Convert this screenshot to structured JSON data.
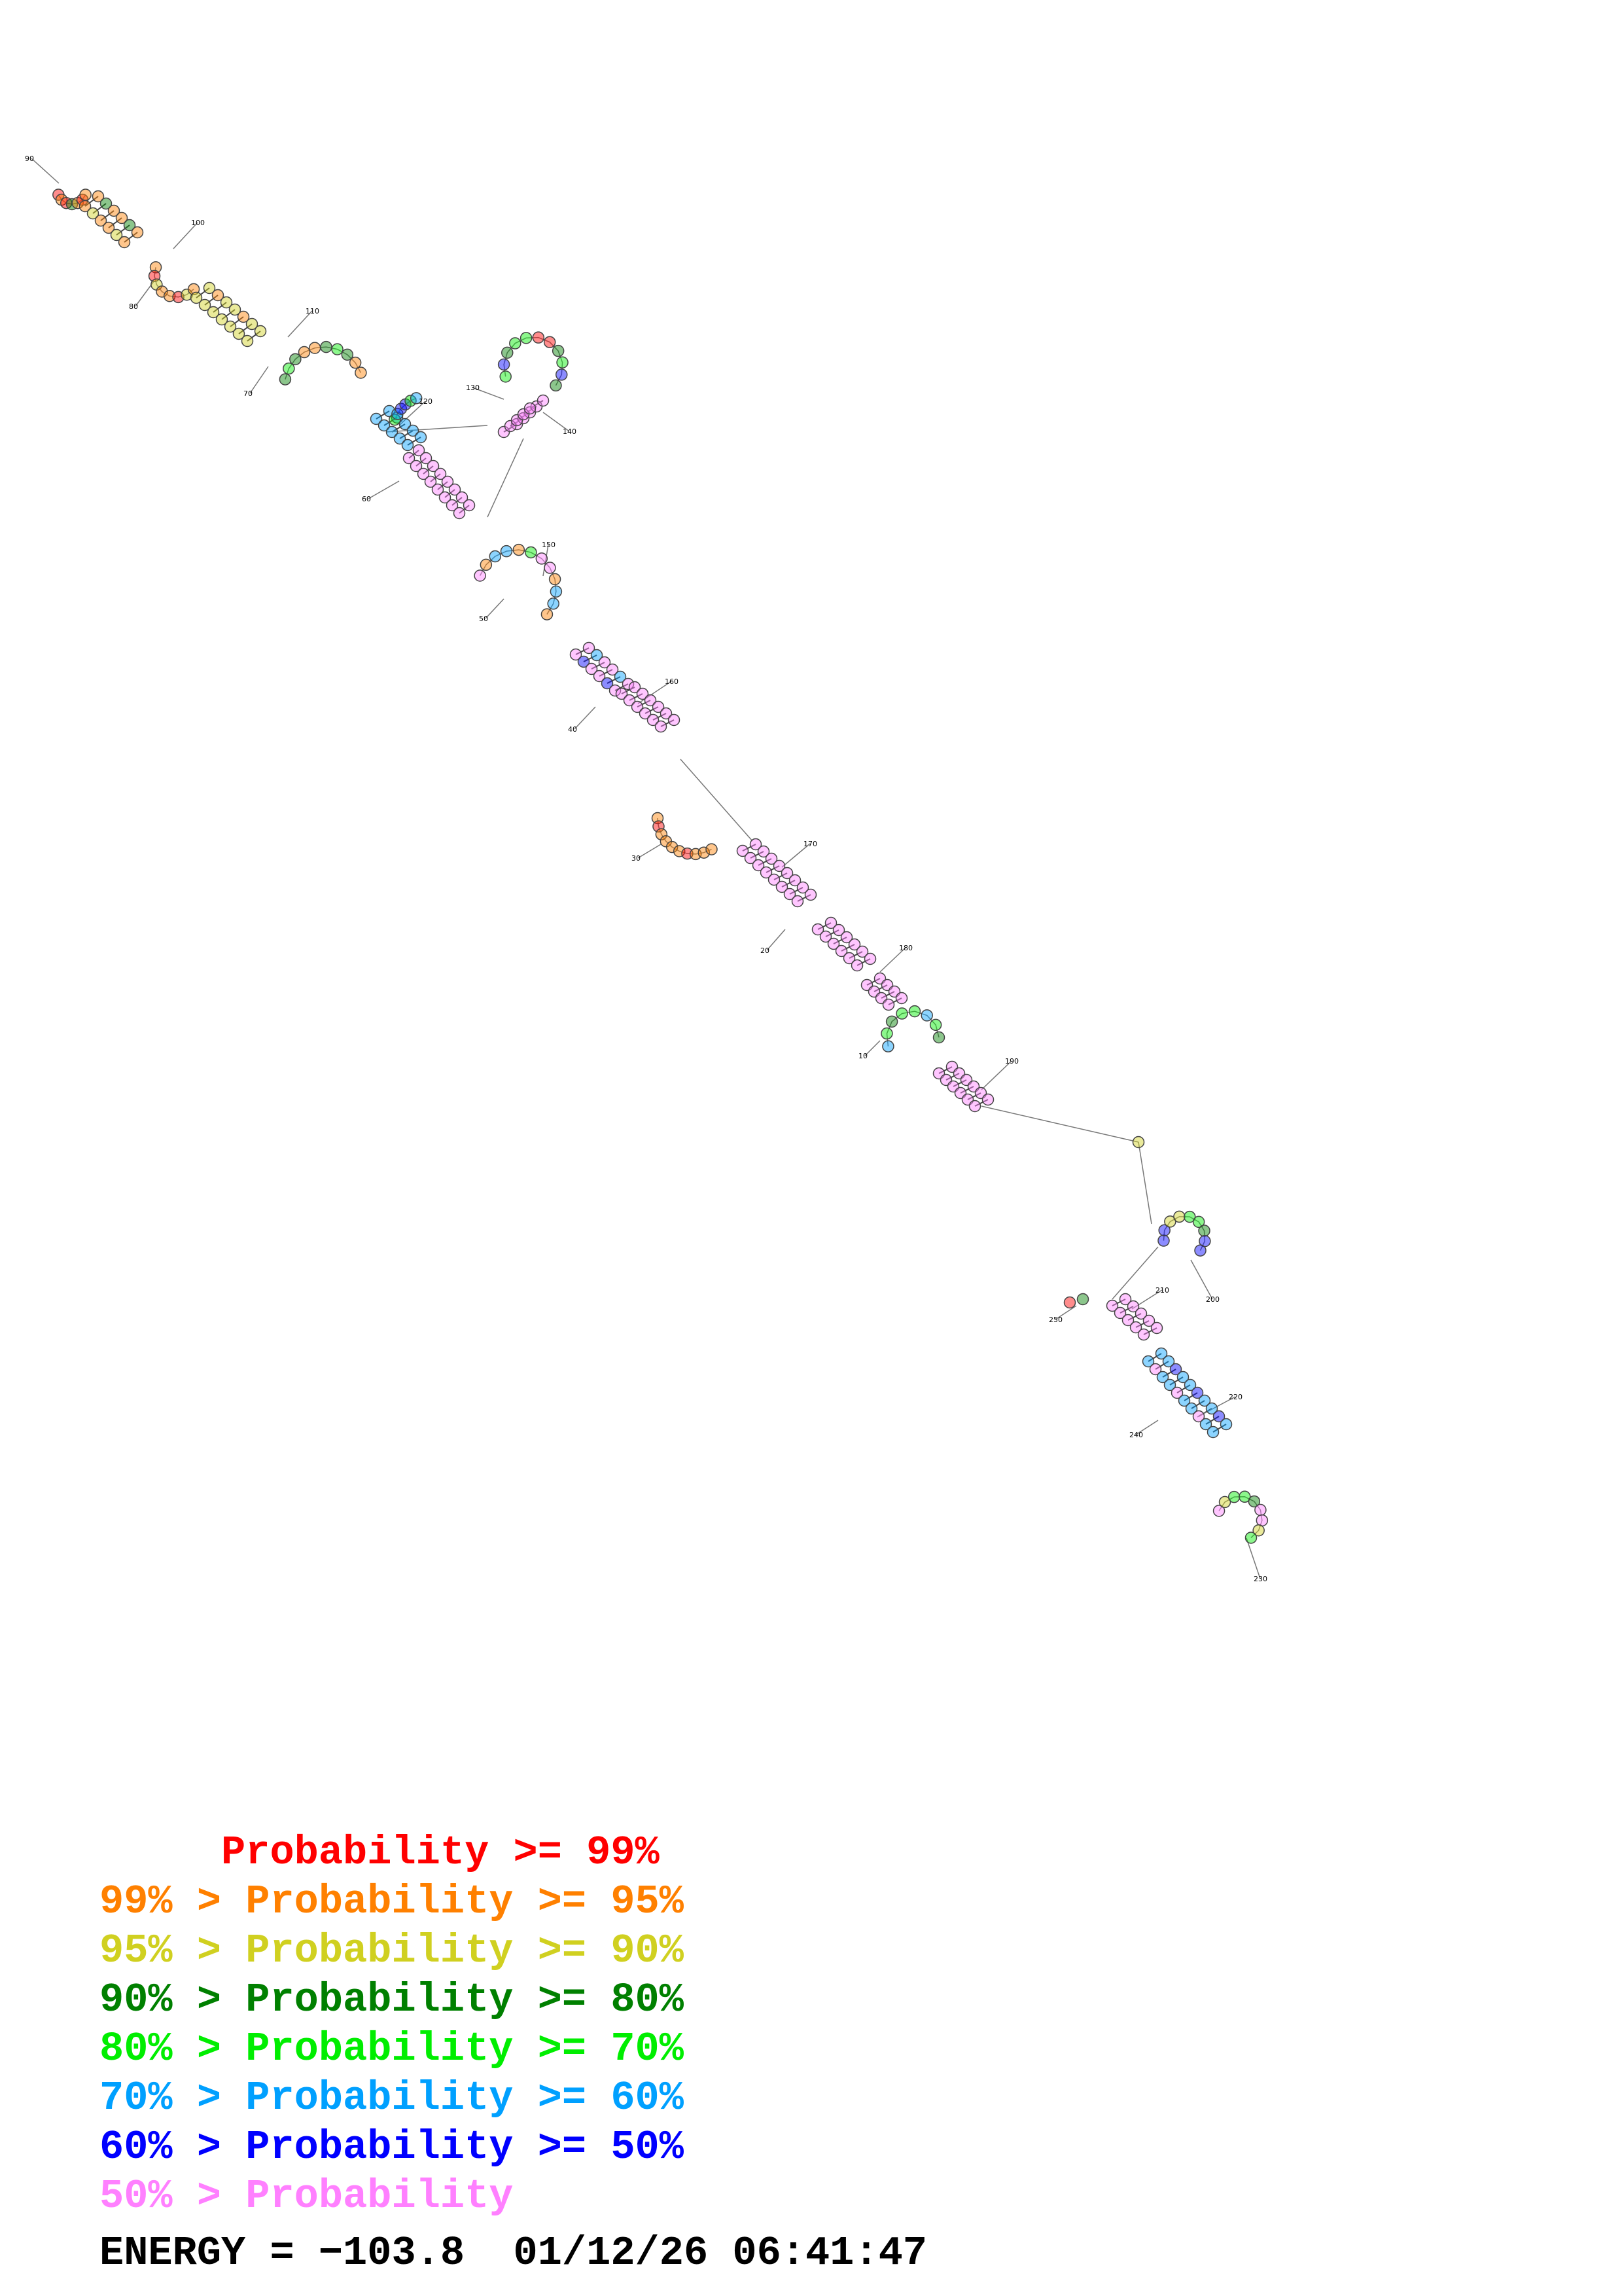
{
  "diagram": {
    "position_labels": [
      "10",
      "20",
      "30",
      "40",
      "50",
      "60",
      "70",
      "80",
      "90",
      "100",
      "110",
      "120",
      "130",
      "140",
      "150",
      "160",
      "170",
      "180",
      "190",
      "200",
      "210",
      "220",
      "230",
      "240",
      "250"
    ],
    "color_scale": {
      "ge99": "#ff0000",
      "ge95": "#ff8000",
      "ge90": "#d0d020",
      "ge80": "#008000",
      "ge70": "#00ee00",
      "ge60": "#00a0ff",
      "ge50": "#0000ff",
      "lt50": "#ff80ff"
    }
  },
  "legend": {
    "rows": [
      {
        "text": "     Probability >= 99%",
        "color": "#ff0000"
      },
      {
        "text": "99% > Probability >= 95%",
        "color": "#ff8000"
      },
      {
        "text": "95% > Probability >= 90%",
        "color": "#d0d020"
      },
      {
        "text": "90% > Probability >= 80%",
        "color": "#008000"
      },
      {
        "text": "80% > Probability >= 70%",
        "color": "#00ee00"
      },
      {
        "text": "70% > Probability >= 60%",
        "color": "#00a0ff"
      },
      {
        "text": "60% > Probability >= 50%",
        "color": "#0000ff"
      },
      {
        "text": "50% > Probability",
        "color": "#ff80ff"
      }
    ],
    "energy_line": "ENERGY = −103.8  01/12/26 06:41:47"
  }
}
